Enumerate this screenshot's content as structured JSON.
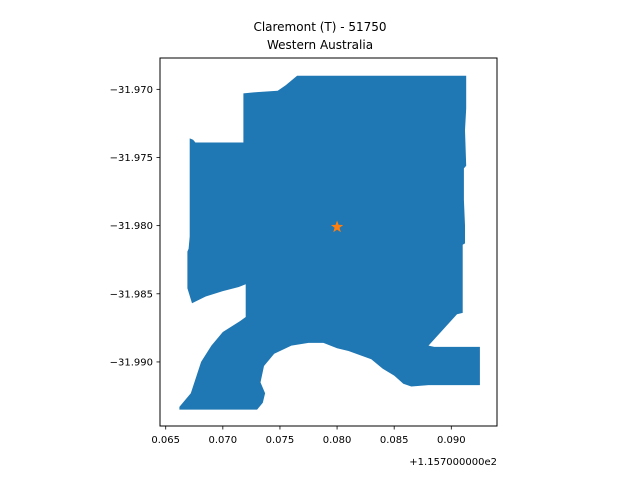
{
  "title": [
    "Claremont (T) - 51750",
    "Western Australia"
  ],
  "chart_data": {
    "type": "map",
    "title": "Claremont (T) - 51750\nWestern Australia",
    "x_offset_label": "+1.157000000e2",
    "x_ticks": [
      {
        "value": 0.065,
        "label": "0.065"
      },
      {
        "value": 0.07,
        "label": "0.070"
      },
      {
        "value": 0.075,
        "label": "0.075"
      },
      {
        "value": 0.08,
        "label": "0.080"
      },
      {
        "value": 0.085,
        "label": "0.085"
      },
      {
        "value": 0.09,
        "label": "0.090"
      }
    ],
    "y_ticks": [
      {
        "value": -31.97,
        "label": "−31.970"
      },
      {
        "value": -31.975,
        "label": "−31.975"
      },
      {
        "value": -31.98,
        "label": "−31.980"
      },
      {
        "value": -31.985,
        "label": "−31.985"
      },
      {
        "value": -31.99,
        "label": "−31.990"
      }
    ],
    "xlim": [
      0.0645,
      0.094
    ],
    "ylim": [
      -31.9947,
      -31.9677
    ],
    "region": {
      "name": "Claremont (T) - 51750",
      "color": "#1f77b4",
      "outline": [
        [
          0.0662,
          -31.9933
        ],
        [
          0.0672,
          -31.9923
        ],
        [
          0.0681,
          -31.99
        ],
        [
          0.069,
          -31.9888
        ],
        [
          0.07,
          -31.9878
        ],
        [
          0.0715,
          -31.987
        ],
        [
          0.072,
          -31.9867
        ],
        [
          0.072,
          -31.9843
        ],
        [
          0.0714,
          -31.9845
        ],
        [
          0.07,
          -31.9848
        ],
        [
          0.0685,
          -31.9852
        ],
        [
          0.0673,
          -31.9857
        ],
        [
          0.0669,
          -31.9846
        ],
        [
          0.0669,
          -31.9819
        ],
        [
          0.067,
          -31.9817
        ],
        [
          0.0671,
          -31.9808
        ],
        [
          0.0671,
          -31.9736
        ],
        [
          0.0674,
          -31.9737
        ],
        [
          0.0676,
          -31.9739
        ],
        [
          0.07,
          -31.9739
        ],
        [
          0.0718,
          -31.9739
        ],
        [
          0.0718,
          -31.9703
        ],
        [
          0.073,
          -31.9702
        ],
        [
          0.0748,
          -31.9701
        ],
        [
          0.0755,
          -31.9697
        ],
        [
          0.0765,
          -31.969
        ],
        [
          0.08,
          -31.969
        ],
        [
          0.0885,
          -31.969
        ],
        [
          0.0913,
          -31.969
        ],
        [
          0.0913,
          -31.9714
        ],
        [
          0.0912,
          -31.973
        ],
        [
          0.0913,
          -31.9756
        ],
        [
          0.0911,
          -31.9758
        ],
        [
          0.0911,
          -31.9781
        ],
        [
          0.0912,
          -31.98
        ],
        [
          0.0912,
          -31.9813
        ],
        [
          0.091,
          -31.9814
        ],
        [
          0.091,
          -31.9834
        ],
        [
          0.091,
          -31.9864
        ],
        [
          0.0905,
          -31.9865
        ],
        [
          0.088,
          -31.9888
        ],
        [
          0.0885,
          -31.9889
        ],
        [
          0.0925,
          -31.9889
        ],
        [
          0.0925,
          -31.9917
        ],
        [
          0.088,
          -31.9917
        ],
        [
          0.0865,
          -31.9918
        ],
        [
          0.0858,
          -31.9916
        ],
        [
          0.085,
          -31.991
        ],
        [
          0.084,
          -31.9905
        ],
        [
          0.083,
          -31.9898
        ],
        [
          0.082,
          -31.9895
        ],
        [
          0.081,
          -31.9892
        ],
        [
          0.08,
          -31.989
        ],
        [
          0.0788,
          -31.9886
        ],
        [
          0.0775,
          -31.9886
        ],
        [
          0.076,
          -31.9888
        ],
        [
          0.0745,
          -31.9894
        ],
        [
          0.0736,
          -31.9903
        ],
        [
          0.0733,
          -31.9915
        ],
        [
          0.0737,
          -31.9923
        ],
        [
          0.0735,
          -31.993
        ],
        [
          0.073,
          -31.9935
        ],
        [
          0.0662,
          -31.9935
        ]
      ]
    },
    "marker": {
      "x": 0.08,
      "y": -31.9801,
      "symbol": "star",
      "color": "#ff7f0e"
    }
  }
}
